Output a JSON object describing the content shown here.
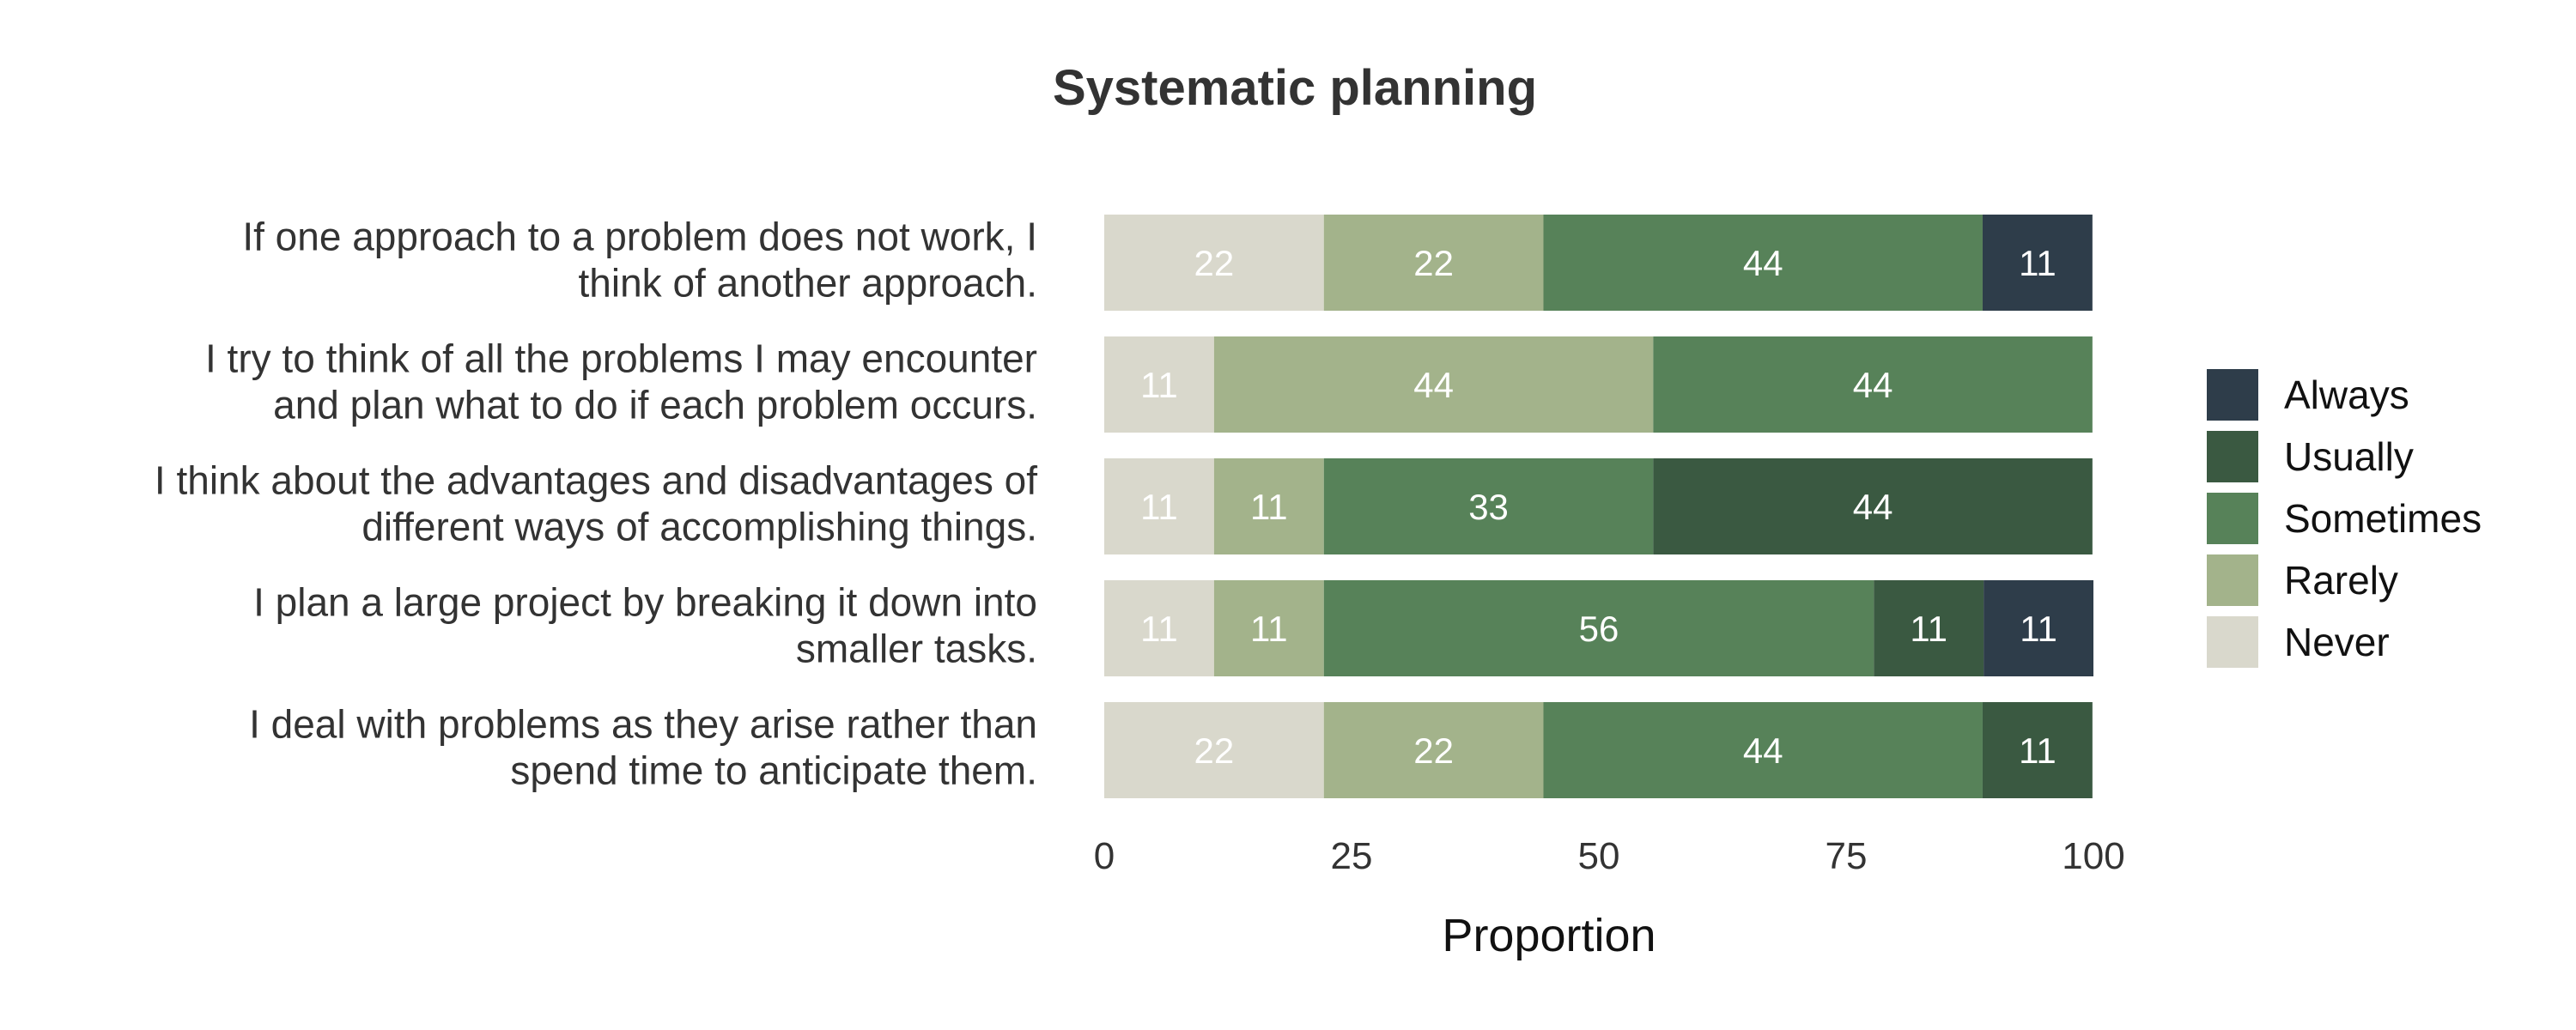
{
  "chart_data": {
    "type": "bar",
    "orientation": "horizontal",
    "stacked": true,
    "title": "Systematic planning",
    "xlabel": "Proportion",
    "ylabel": "",
    "xlim": [
      0,
      100
    ],
    "xticks": [
      0,
      25,
      50,
      75,
      100
    ],
    "grid": false,
    "legend_position": "right",
    "categories": [
      [
        "If one approach to a problem does not work, I",
        "think of another approach."
      ],
      [
        "I try to think of all the problems I may encounter",
        "and plan what to do if each problem occurs."
      ],
      [
        "I think about the advantages and disadvantages of",
        "different ways of accomplishing things."
      ],
      [
        "I plan a large project by breaking it down into",
        "smaller tasks."
      ],
      [
        "I deal with problems as they arise rather than",
        "spend time to anticipate them."
      ]
    ],
    "series": [
      {
        "name": "Never",
        "color": "#d9d8cc",
        "values": [
          22.2,
          11.1,
          11.1,
          11.1,
          22.2
        ],
        "labels": [
          "22",
          "11",
          "11",
          "11",
          "22"
        ]
      },
      {
        "name": "Rarely",
        "color": "#a3b38b",
        "values": [
          22.2,
          44.4,
          11.1,
          11.1,
          22.2
        ],
        "labels": [
          "22",
          "44",
          "11",
          "11",
          "22"
        ]
      },
      {
        "name": "Sometimes",
        "color": "#578259",
        "values": [
          44.4,
          44.4,
          33.3,
          55.6,
          44.4
        ],
        "labels": [
          "44",
          "44",
          "33",
          "56",
          "44"
        ]
      },
      {
        "name": "Usually",
        "color": "#3a5941",
        "values": [
          0,
          0,
          44.4,
          11.1,
          11.1
        ],
        "labels": [
          "",
          "",
          "44",
          "11",
          "11"
        ]
      },
      {
        "name": "Always",
        "color": "#2e3d4a",
        "values": [
          11.1,
          0,
          0,
          11.1,
          0
        ],
        "labels": [
          "11",
          "",
          "",
          "11",
          ""
        ]
      }
    ],
    "legend_order": [
      "Always",
      "Usually",
      "Sometimes",
      "Rarely",
      "Never"
    ]
  }
}
